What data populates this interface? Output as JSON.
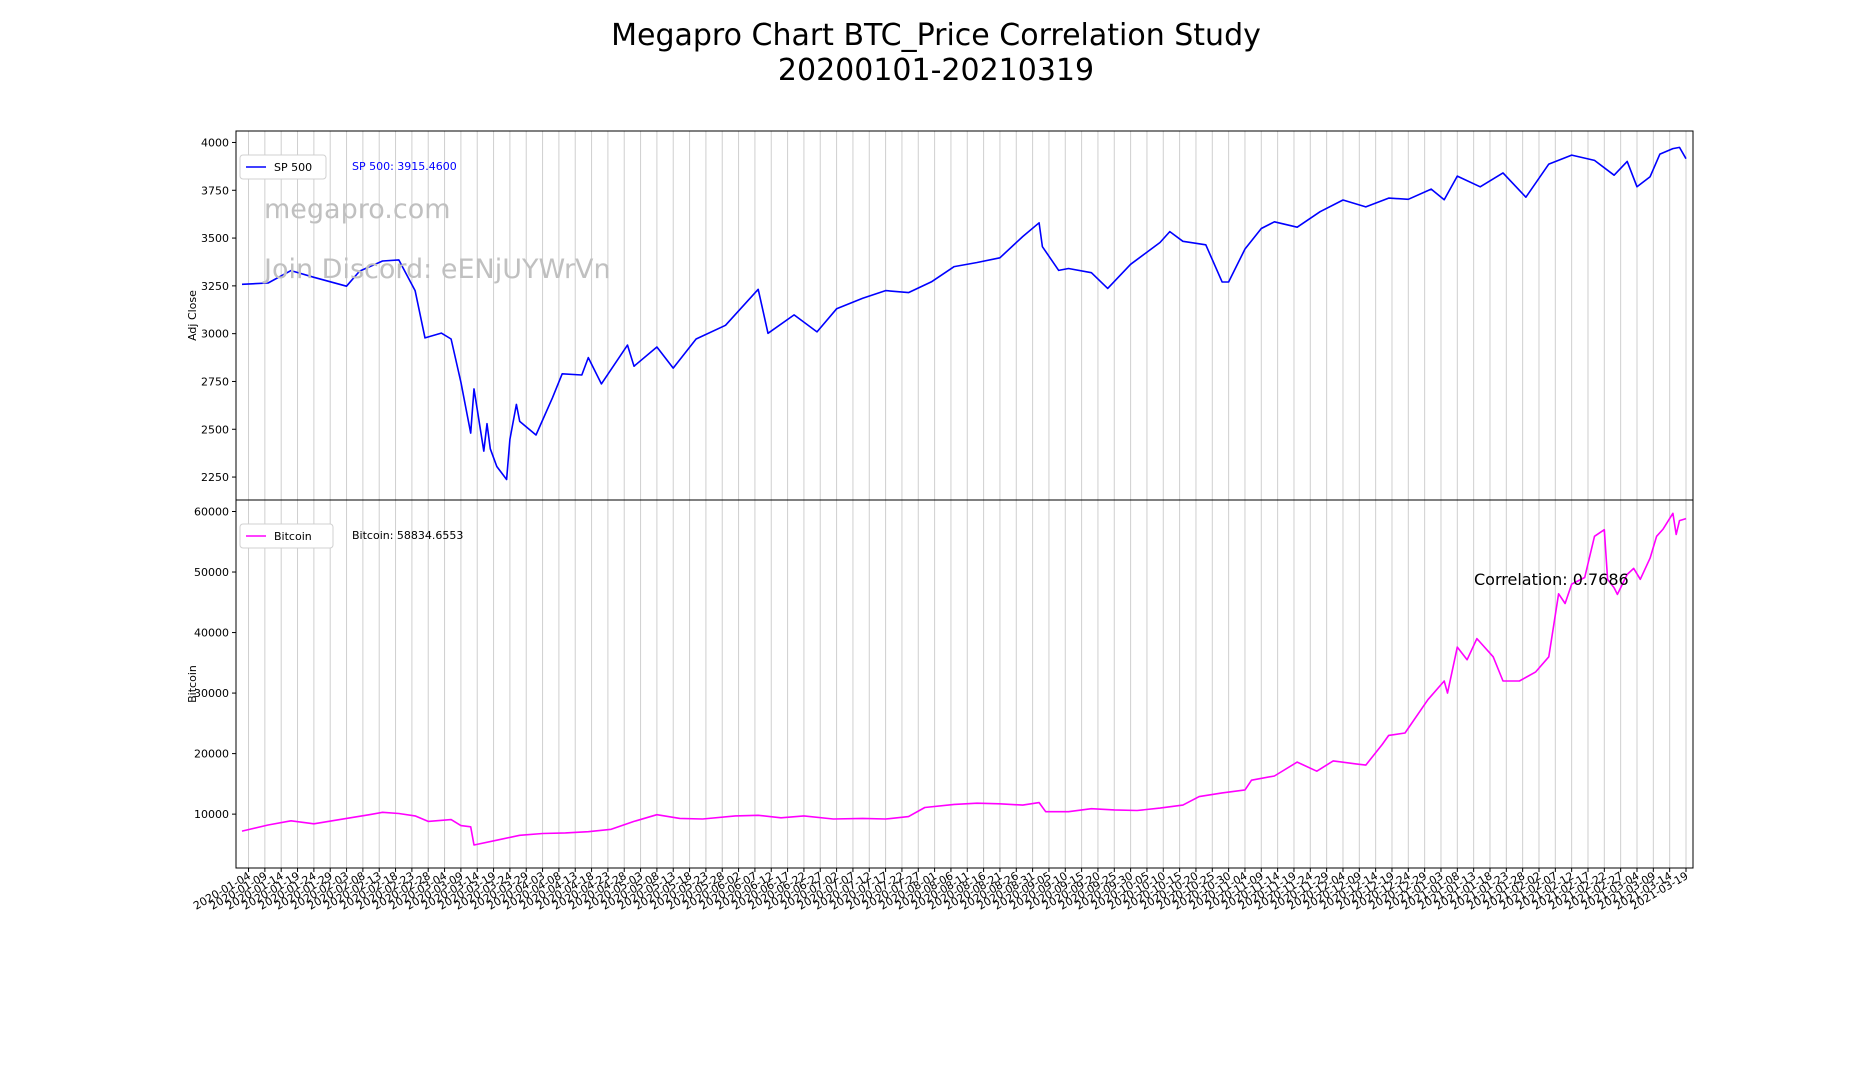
{
  "title_line1": "Megapro Chart BTC_Price Correlation Study",
  "title_line2": "20200101-20210319",
  "watermark1": "megapro.com",
  "watermark2": "Join Discord: eENjUYWrVn",
  "correlation_text": "Correlation: 0.7686",
  "colors": {
    "sp500": "#0000ff",
    "bitcoin": "#ff00ff",
    "watermark": "#c0c0c0",
    "grid": "#cfcfcf"
  },
  "chart_data": [
    {
      "type": "line",
      "ylabel": "Adj Close",
      "ylim": [
        2130,
        4060
      ],
      "yticks": [
        2250,
        2500,
        2750,
        3000,
        3250,
        3500,
        3750,
        4000
      ],
      "grid": "vertical",
      "legend_position": "upper-left",
      "annotation": "SP 500: 3915.4600",
      "series": [
        {
          "name": "SP 500",
          "color": "#0000ff",
          "points": [
            [
              "2020-01-02",
              3258
            ],
            [
              "2020-01-10",
              3265
            ],
            [
              "2020-01-17",
              3330
            ],
            [
              "2020-01-24",
              3295
            ],
            [
              "2020-02-03",
              3248
            ],
            [
              "2020-02-07",
              3327
            ],
            [
              "2020-02-14",
              3380
            ],
            [
              "2020-02-19",
              3386
            ],
            [
              "2020-02-24",
              3225
            ],
            [
              "2020-02-27",
              2978
            ],
            [
              "2020-03-03",
              3003
            ],
            [
              "2020-03-06",
              2972
            ],
            [
              "2020-03-09",
              2746
            ],
            [
              "2020-03-12",
              2480
            ],
            [
              "2020-03-13",
              2711
            ],
            [
              "2020-03-16",
              2386
            ],
            [
              "2020-03-17",
              2529
            ],
            [
              "2020-03-18",
              2398
            ],
            [
              "2020-03-20",
              2305
            ],
            [
              "2020-03-23",
              2237
            ],
            [
              "2020-03-24",
              2447
            ],
            [
              "2020-03-26",
              2630
            ],
            [
              "2020-03-27",
              2541
            ],
            [
              "2020-04-01",
              2470
            ],
            [
              "2020-04-06",
              2664
            ],
            [
              "2020-04-09",
              2790
            ],
            [
              "2020-04-15",
              2784
            ],
            [
              "2020-04-17",
              2875
            ],
            [
              "2020-04-21",
              2737
            ],
            [
              "2020-04-29",
              2940
            ],
            [
              "2020-05-01",
              2830
            ],
            [
              "2020-05-08",
              2930
            ],
            [
              "2020-05-13",
              2820
            ],
            [
              "2020-05-20",
              2972
            ],
            [
              "2020-05-29",
              3044
            ],
            [
              "2020-06-08",
              3232
            ],
            [
              "2020-06-11",
              3002
            ],
            [
              "2020-06-19",
              3098
            ],
            [
              "2020-06-26",
              3009
            ],
            [
              "2020-07-02",
              3130
            ],
            [
              "2020-07-10",
              3185
            ],
            [
              "2020-07-17",
              3225
            ],
            [
              "2020-07-24",
              3215
            ],
            [
              "2020-07-31",
              3271
            ],
            [
              "2020-08-07",
              3351
            ],
            [
              "2020-08-14",
              3372
            ],
            [
              "2020-08-21",
              3397
            ],
            [
              "2020-08-28",
              3508
            ],
            [
              "2020-09-02",
              3580
            ],
            [
              "2020-09-03",
              3455
            ],
            [
              "2020-09-08",
              3331
            ],
            [
              "2020-09-11",
              3341
            ],
            [
              "2020-09-18",
              3319
            ],
            [
              "2020-09-23",
              3237
            ],
            [
              "2020-09-30",
              3363
            ],
            [
              "2020-10-09",
              3477
            ],
            [
              "2020-10-12",
              3534
            ],
            [
              "2020-10-16",
              3483
            ],
            [
              "2020-10-23",
              3465
            ],
            [
              "2020-10-28",
              3271
            ],
            [
              "2020-10-30",
              3270
            ],
            [
              "2020-11-04",
              3443
            ],
            [
              "2020-11-09",
              3550
            ],
            [
              "2020-11-13",
              3585
            ],
            [
              "2020-11-20",
              3557
            ],
            [
              "2020-11-27",
              3638
            ],
            [
              "2020-12-04",
              3699
            ],
            [
              "2020-12-11",
              3663
            ],
            [
              "2020-12-18",
              3709
            ],
            [
              "2020-12-24",
              3703
            ],
            [
              "2020-12-31",
              3756
            ],
            [
              "2021-01-04",
              3700
            ],
            [
              "2021-01-08",
              3824
            ],
            [
              "2021-01-15",
              3768
            ],
            [
              "2021-01-22",
              3841
            ],
            [
              "2021-01-27",
              3750
            ],
            [
              "2021-01-29",
              3714
            ],
            [
              "2021-02-05",
              3887
            ],
            [
              "2021-02-12",
              3934
            ],
            [
              "2021-02-19",
              3906
            ],
            [
              "2021-02-25",
              3829
            ],
            [
              "2021-03-01",
              3901
            ],
            [
              "2021-03-04",
              3768
            ],
            [
              "2021-03-08",
              3821
            ],
            [
              "2021-03-11",
              3939
            ],
            [
              "2021-03-15",
              3968
            ],
            [
              "2021-03-17",
              3974
            ],
            [
              "2021-03-19",
              3915
            ]
          ]
        }
      ]
    },
    {
      "type": "line",
      "ylabel": "Bitcoin",
      "ylim": [
        1100,
        61900
      ],
      "yticks": [
        10000,
        20000,
        30000,
        40000,
        50000,
        60000
      ],
      "grid": "vertical",
      "legend_position": "upper-left",
      "annotation": "Bitcoin: 58834.6553",
      "series": [
        {
          "name": "Bitcoin",
          "color": "#ff00ff",
          "points": [
            [
              "2020-01-02",
              7200
            ],
            [
              "2020-01-10",
              8200
            ],
            [
              "2020-01-17",
              8900
            ],
            [
              "2020-01-24",
              8400
            ],
            [
              "2020-02-03",
              9300
            ],
            [
              "2020-02-10",
              9900
            ],
            [
              "2020-02-14",
              10300
            ],
            [
              "2020-02-19",
              10100
            ],
            [
              "2020-02-24",
              9700
            ],
            [
              "2020-02-28",
              8800
            ],
            [
              "2020-03-06",
              9100
            ],
            [
              "2020-03-09",
              8100
            ],
            [
              "2020-03-12",
              7900
            ],
            [
              "2020-03-13",
              4900
            ],
            [
              "2020-03-20",
              5700
            ],
            [
              "2020-03-27",
              6500
            ],
            [
              "2020-04-03",
              6800
            ],
            [
              "2020-04-10",
              6900
            ],
            [
              "2020-04-17",
              7100
            ],
            [
              "2020-04-24",
              7500
            ],
            [
              "2020-05-01",
              8800
            ],
            [
              "2020-05-08",
              9900
            ],
            [
              "2020-05-15",
              9300
            ],
            [
              "2020-05-22",
              9200
            ],
            [
              "2020-06-01",
              9700
            ],
            [
              "2020-06-08",
              9800
            ],
            [
              "2020-06-15",
              9400
            ],
            [
              "2020-06-22",
              9700
            ],
            [
              "2020-07-01",
              9200
            ],
            [
              "2020-07-10",
              9300
            ],
            [
              "2020-07-17",
              9200
            ],
            [
              "2020-07-24",
              9600
            ],
            [
              "2020-07-29",
              11100
            ],
            [
              "2020-08-07",
              11600
            ],
            [
              "2020-08-14",
              11800
            ],
            [
              "2020-08-21",
              11700
            ],
            [
              "2020-08-28",
              11500
            ],
            [
              "2020-09-02",
              11900
            ],
            [
              "2020-09-04",
              10400
            ],
            [
              "2020-09-11",
              10400
            ],
            [
              "2020-09-18",
              10900
            ],
            [
              "2020-09-25",
              10700
            ],
            [
              "2020-10-02",
              10600
            ],
            [
              "2020-10-09",
              11000
            ],
            [
              "2020-10-16",
              11500
            ],
            [
              "2020-10-21",
              12900
            ],
            [
              "2020-10-28",
              13500
            ],
            [
              "2020-11-04",
              14000
            ],
            [
              "2020-11-06",
              15600
            ],
            [
              "2020-11-13",
              16300
            ],
            [
              "2020-11-20",
              18600
            ],
            [
              "2020-11-26",
              17100
            ],
            [
              "2020-12-01",
              18800
            ],
            [
              "2020-12-08",
              18300
            ],
            [
              "2020-12-11",
              18100
            ],
            [
              "2020-12-16",
              21500
            ],
            [
              "2020-12-18",
              23000
            ],
            [
              "2020-12-23",
              23400
            ],
            [
              "2020-12-30",
              28900
            ],
            [
              "2021-01-04",
              32000
            ],
            [
              "2021-01-05",
              30000
            ],
            [
              "2021-01-08",
              37600
            ],
            [
              "2021-01-11",
              35500
            ],
            [
              "2021-01-14",
              39000
            ],
            [
              "2021-01-19",
              36000
            ],
            [
              "2021-01-22",
              32000
            ],
            [
              "2021-01-27",
              32000
            ],
            [
              "2021-02-01",
              33500
            ],
            [
              "2021-02-05",
              36000
            ],
            [
              "2021-02-08",
              46400
            ],
            [
              "2021-02-10",
              44800
            ],
            [
              "2021-02-12",
              48000
            ],
            [
              "2021-02-16",
              49100
            ],
            [
              "2021-02-19",
              55900
            ],
            [
              "2021-02-22",
              57000
            ],
            [
              "2021-02-23",
              48800
            ],
            [
              "2021-02-25",
              47400
            ],
            [
              "2021-02-26",
              46300
            ],
            [
              "2021-03-01",
              49600
            ],
            [
              "2021-03-03",
              50600
            ],
            [
              "2021-03-05",
              48800
            ],
            [
              "2021-03-08",
              52300
            ],
            [
              "2021-03-10",
              55900
            ],
            [
              "2021-03-12",
              57100
            ],
            [
              "2021-03-15",
              59700
            ],
            [
              "2021-03-16",
              56200
            ],
            [
              "2021-03-17",
              58500
            ],
            [
              "2021-03-19",
              58835
            ]
          ]
        }
      ]
    }
  ],
  "x_axis": {
    "type": "date",
    "range": [
      "2020-01-02",
      "2021-03-19"
    ],
    "first_tick": "2020-01-04",
    "tick_interval_days": 5,
    "last_tick": "2021-03-19"
  }
}
